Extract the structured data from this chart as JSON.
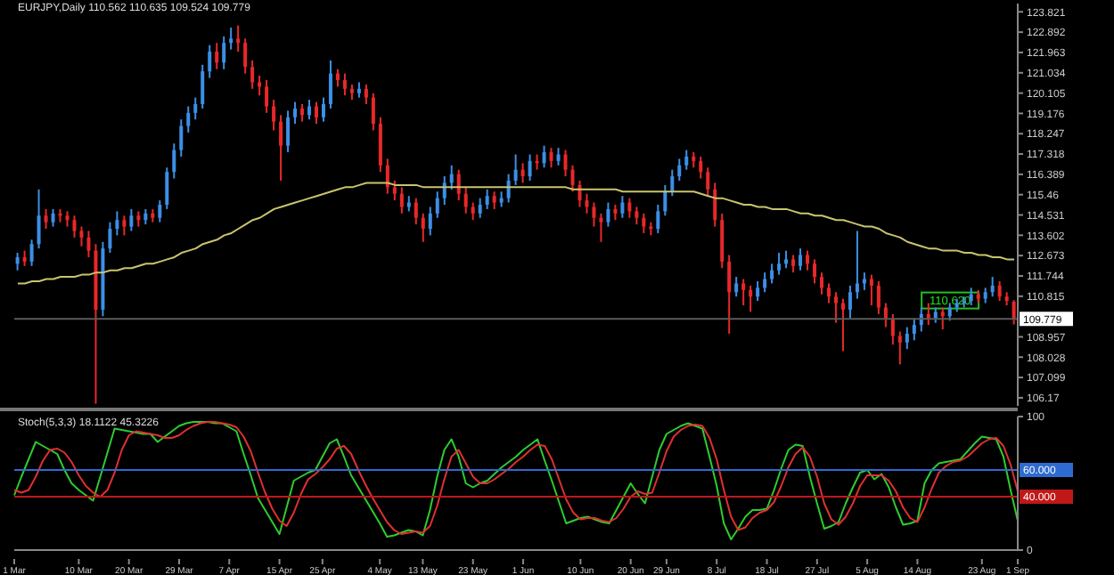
{
  "chart_data": [
    {
      "type": "candlestick",
      "title": "EURJPY,Daily 110.562 110.635 109.524 109.779",
      "categories": [
        null,
        null,
        null,
        null,
        null,
        null,
        null,
        null,
        null,
        null,
        null,
        null,
        null,
        null,
        null,
        null,
        null,
        null,
        null,
        null,
        null,
        null,
        null,
        null,
        null,
        null,
        null,
        null,
        null,
        null,
        null,
        null,
        null,
        null,
        null,
        null,
        null,
        null,
        null,
        null,
        null,
        null,
        null,
        null,
        null,
        null,
        null,
        null,
        null,
        null,
        null,
        null,
        null,
        null,
        null,
        null,
        null,
        null,
        null,
        null,
        null,
        null,
        null,
        null,
        null,
        null,
        null,
        null,
        null,
        null,
        null,
        null,
        null,
        null,
        null,
        null,
        null,
        null,
        null,
        null,
        null,
        null,
        null,
        null,
        null,
        null,
        null,
        null,
        null,
        null,
        null,
        null,
        null,
        null,
        null,
        null,
        null,
        null,
        null,
        null,
        null,
        null,
        null,
        null,
        null,
        null,
        null,
        null,
        null,
        null,
        null,
        null,
        null,
        null,
        null,
        null,
        null,
        null,
        null,
        null,
        null,
        null,
        null,
        null,
        null,
        null,
        null,
        null,
        null,
        null,
        null,
        null,
        null,
        null,
        null,
        null,
        null,
        null,
        null,
        null,
        null
      ],
      "ohlc": [
        [
          112.3,
          112.8,
          112.0,
          112.6
        ],
        [
          112.6,
          112.9,
          112.2,
          112.4
        ],
        [
          112.4,
          113.4,
          112.2,
          113.2
        ],
        [
          113.2,
          115.7,
          113.0,
          114.5
        ],
        [
          114.5,
          114.8,
          113.9,
          114.2
        ],
        [
          114.2,
          114.8,
          114.0,
          114.6
        ],
        [
          114.6,
          114.8,
          114.2,
          114.5
        ],
        [
          114.5,
          114.7,
          114.0,
          114.3
        ],
        [
          114.3,
          114.5,
          113.5,
          113.8
        ],
        [
          113.8,
          114.0,
          113.1,
          113.5
        ],
        [
          113.5,
          113.8,
          112.6,
          112.9
        ],
        [
          112.9,
          113.2,
          105.9,
          110.2
        ],
        [
          110.2,
          113.3,
          109.9,
          113.0
        ],
        [
          113.0,
          114.2,
          112.8,
          113.9
        ],
        [
          113.9,
          114.7,
          113.6,
          114.3
        ],
        [
          114.3,
          114.5,
          113.6,
          114.0
        ],
        [
          114.0,
          114.8,
          113.8,
          114.5
        ],
        [
          114.5,
          114.7,
          114.0,
          114.3
        ],
        [
          114.3,
          114.8,
          114.1,
          114.6
        ],
        [
          114.6,
          114.8,
          114.2,
          114.4
        ],
        [
          114.4,
          115.2,
          114.2,
          115.0
        ],
        [
          115.0,
          116.7,
          114.8,
          116.5
        ],
        [
          116.5,
          117.8,
          116.2,
          117.5
        ],
        [
          117.5,
          118.9,
          117.2,
          118.6
        ],
        [
          118.6,
          119.5,
          118.3,
          119.2
        ],
        [
          119.2,
          119.9,
          118.9,
          119.6
        ],
        [
          119.6,
          121.4,
          119.4,
          121.1
        ],
        [
          121.1,
          122.3,
          120.8,
          122.0
        ],
        [
          122.0,
          122.4,
          121.2,
          121.5
        ],
        [
          121.5,
          122.7,
          121.2,
          122.4
        ],
        [
          122.4,
          123.1,
          122.1,
          122.6
        ],
        [
          122.6,
          123.2,
          122.0,
          122.4
        ],
        [
          122.4,
          122.6,
          121.0,
          121.3
        ],
        [
          121.3,
          121.6,
          120.3,
          120.6
        ],
        [
          120.6,
          120.9,
          120.0,
          120.4
        ],
        [
          120.4,
          120.7,
          119.2,
          119.5
        ],
        [
          119.5,
          119.8,
          118.4,
          118.8
        ],
        [
          118.8,
          119.1,
          116.1,
          117.7
        ],
        [
          117.7,
          119.3,
          117.4,
          119.0
        ],
        [
          119.0,
          119.7,
          118.7,
          119.4
        ],
        [
          119.4,
          119.6,
          118.8,
          119.1
        ],
        [
          119.1,
          119.8,
          118.9,
          119.5
        ],
        [
          119.5,
          119.7,
          118.7,
          119.0
        ],
        [
          119.0,
          119.9,
          118.8,
          119.6
        ],
        [
          119.6,
          121.6,
          119.4,
          121.0
        ],
        [
          121.0,
          121.2,
          120.4,
          120.7
        ],
        [
          120.7,
          121.0,
          120.0,
          120.3
        ],
        [
          120.3,
          120.5,
          119.8,
          120.1
        ],
        [
          120.1,
          120.6,
          119.9,
          120.3
        ],
        [
          120.3,
          120.5,
          119.6,
          119.9
        ],
        [
          119.9,
          120.1,
          118.4,
          118.7
        ],
        [
          118.7,
          119.0,
          116.5,
          116.8
        ],
        [
          116.8,
          117.1,
          115.5,
          115.8
        ],
        [
          115.8,
          116.1,
          115.2,
          115.5
        ],
        [
          115.5,
          115.8,
          114.6,
          114.9
        ],
        [
          114.9,
          115.4,
          114.7,
          115.1
        ],
        [
          115.1,
          115.3,
          114.1,
          114.4
        ],
        [
          114.4,
          114.6,
          113.3,
          113.9
        ],
        [
          113.9,
          114.9,
          113.6,
          114.6
        ],
        [
          114.6,
          115.6,
          114.4,
          115.3
        ],
        [
          115.3,
          116.3,
          115.0,
          116.0
        ],
        [
          116.0,
          116.8,
          115.7,
          116.4
        ],
        [
          116.4,
          116.6,
          115.2,
          115.5
        ],
        [
          115.5,
          115.8,
          114.6,
          114.9
        ],
        [
          114.9,
          115.1,
          114.3,
          114.6
        ],
        [
          114.6,
          115.3,
          114.4,
          115.0
        ],
        [
          115.0,
          115.7,
          114.8,
          115.4
        ],
        [
          115.4,
          115.6,
          114.8,
          115.1
        ],
        [
          115.1,
          115.6,
          114.9,
          115.3
        ],
        [
          115.3,
          116.4,
          115.1,
          116.1
        ],
        [
          116.1,
          117.3,
          115.9,
          116.6
        ],
        [
          116.6,
          116.9,
          116.0,
          116.3
        ],
        [
          116.3,
          117.3,
          116.1,
          117.0
        ],
        [
          117.0,
          117.3,
          116.6,
          116.9
        ],
        [
          116.9,
          117.7,
          116.7,
          117.4
        ],
        [
          117.4,
          117.6,
          116.7,
          117.0
        ],
        [
          117.0,
          117.6,
          116.8,
          117.3
        ],
        [
          117.3,
          117.5,
          116.3,
          116.6
        ],
        [
          116.6,
          116.8,
          115.6,
          115.9
        ],
        [
          115.9,
          116.1,
          114.9,
          115.2
        ],
        [
          115.2,
          115.5,
          114.6,
          114.9
        ],
        [
          114.9,
          115.1,
          114.0,
          114.4
        ],
        [
          114.4,
          114.6,
          113.3,
          114.2
        ],
        [
          114.2,
          115.1,
          114.0,
          114.8
        ],
        [
          114.8,
          115.0,
          114.3,
          114.6
        ],
        [
          114.6,
          115.4,
          114.4,
          115.1
        ],
        [
          115.1,
          115.3,
          114.4,
          114.7
        ],
        [
          114.7,
          114.9,
          114.1,
          114.4
        ],
        [
          114.4,
          114.6,
          113.7,
          114.0
        ],
        [
          114.0,
          114.2,
          113.6,
          113.9
        ],
        [
          113.9,
          115.0,
          113.7,
          114.7
        ],
        [
          114.7,
          115.9,
          114.5,
          115.6
        ],
        [
          115.6,
          116.6,
          115.4,
          116.3
        ],
        [
          116.3,
          117.1,
          116.1,
          116.8
        ],
        [
          116.8,
          117.5,
          116.6,
          117.2
        ],
        [
          117.2,
          117.4,
          116.7,
          117.0
        ],
        [
          117.0,
          117.2,
          116.2,
          116.5
        ],
        [
          116.5,
          116.7,
          115.4,
          115.7
        ],
        [
          115.7,
          116.0,
          114.0,
          114.3
        ],
        [
          114.3,
          114.6,
          112.1,
          112.4
        ],
        [
          112.4,
          112.7,
          109.1,
          111.0
        ],
        [
          111.0,
          111.7,
          110.8,
          111.4
        ],
        [
          111.4,
          111.6,
          110.4,
          111.1
        ],
        [
          111.1,
          111.3,
          110.1,
          110.8
        ],
        [
          110.8,
          111.5,
          110.6,
          111.2
        ],
        [
          111.2,
          111.9,
          111.0,
          111.6
        ],
        [
          111.6,
          112.3,
          111.4,
          112.0
        ],
        [
          112.0,
          112.8,
          111.8,
          112.3
        ],
        [
          112.3,
          112.9,
          112.1,
          112.5
        ],
        [
          112.5,
          112.7,
          111.9,
          112.2
        ],
        [
          112.2,
          113.0,
          112.0,
          112.7
        ],
        [
          112.7,
          112.9,
          112.0,
          112.3
        ],
        [
          112.3,
          112.5,
          111.4,
          111.7
        ],
        [
          111.7,
          111.9,
          110.9,
          111.2
        ],
        [
          111.2,
          111.4,
          110.5,
          110.8
        ],
        [
          110.8,
          111.0,
          109.6,
          110.5
        ],
        [
          110.5,
          110.7,
          108.3,
          110.2
        ],
        [
          110.2,
          111.3,
          109.8,
          111.0
        ],
        [
          111.0,
          113.8,
          110.7,
          111.4
        ],
        [
          111.4,
          111.9,
          111.1,
          111.6
        ],
        [
          111.6,
          111.8,
          110.4,
          111.3
        ],
        [
          111.3,
          111.5,
          110.0,
          110.3
        ],
        [
          110.3,
          110.5,
          109.4,
          109.8
        ],
        [
          109.8,
          110.0,
          108.6,
          109.0
        ],
        [
          109.0,
          109.2,
          107.7,
          108.7
        ],
        [
          108.7,
          109.4,
          108.4,
          109.1
        ],
        [
          109.1,
          109.8,
          108.8,
          109.5
        ],
        [
          109.5,
          110.3,
          109.2,
          110.0
        ],
        [
          110.0,
          110.5,
          109.5,
          109.8
        ],
        [
          109.8,
          110.3,
          109.6,
          110.1
        ],
        [
          110.1,
          110.3,
          109.3,
          109.9
        ],
        [
          109.9,
          110.5,
          109.7,
          110.3
        ],
        [
          110.3,
          110.7,
          110.1,
          110.5
        ],
        [
          110.5,
          110.8,
          110.3,
          110.6
        ],
        [
          110.6,
          111.2,
          110.4,
          110.9
        ],
        [
          110.9,
          111.1,
          110.5,
          110.7
        ],
        [
          110.7,
          111.2,
          110.5,
          111.0
        ],
        [
          111.0,
          111.7,
          110.8,
          111.3
        ],
        [
          111.3,
          111.5,
          110.6,
          110.8
        ],
        [
          110.8,
          111.0,
          110.4,
          110.6
        ],
        [
          110.562,
          110.635,
          109.524,
          109.779
        ]
      ],
      "colors": [
        "#3c8fe6",
        "#e8282a",
        "#3c8fe6",
        "#3c8fe6",
        "#e8282a",
        "#3c8fe6",
        "#e8282a",
        "#e8282a",
        "#e8282a",
        "#e8282a",
        "#e8282a",
        "#e8282a",
        "#3c8fe6",
        "#3c8fe6",
        "#3c8fe6",
        "#e8282a",
        "#3c8fe6",
        "#e8282a",
        "#3c8fe6",
        "#e8282a",
        "#3c8fe6",
        "#3c8fe6",
        "#3c8fe6",
        "#3c8fe6",
        "#3c8fe6",
        "#3c8fe6",
        "#3c8fe6",
        "#3c8fe6",
        "#e8282a",
        "#3c8fe6",
        "#3c8fe6",
        "#e8282a",
        "#e8282a",
        "#e8282a",
        "#e8282a",
        "#e8282a",
        "#e8282a",
        "#e8282a",
        "#3c8fe6",
        "#3c8fe6",
        "#e8282a",
        "#3c8fe6",
        "#e8282a",
        "#3c8fe6",
        "#3c8fe6",
        "#e8282a",
        "#e8282a",
        "#e8282a",
        "#3c8fe6",
        "#e8282a",
        "#e8282a",
        "#e8282a",
        "#e8282a",
        "#e8282a",
        "#e8282a",
        "#3c8fe6",
        "#e8282a",
        "#e8282a",
        "#3c8fe6",
        "#3c8fe6",
        "#3c8fe6",
        "#3c8fe6",
        "#e8282a",
        "#e8282a",
        "#e8282a",
        "#3c8fe6",
        "#3c8fe6",
        "#e8282a",
        "#3c8fe6",
        "#3c8fe6",
        "#3c8fe6",
        "#e8282a",
        "#3c8fe6",
        "#e8282a",
        "#3c8fe6",
        "#e8282a",
        "#3c8fe6",
        "#e8282a",
        "#e8282a",
        "#e8282a",
        "#e8282a",
        "#e8282a",
        "#e8282a",
        "#3c8fe6",
        "#e8282a",
        "#3c8fe6",
        "#e8282a",
        "#e8282a",
        "#e8282a",
        "#e8282a",
        "#3c8fe6",
        "#3c8fe6",
        "#3c8fe6",
        "#3c8fe6",
        "#3c8fe6",
        "#e8282a",
        "#e8282a",
        "#e8282a",
        "#e8282a",
        "#e8282a",
        "#e8282a",
        "#3c8fe6",
        "#e8282a",
        "#e8282a",
        "#3c8fe6",
        "#3c8fe6",
        "#3c8fe6",
        "#3c8fe6",
        "#3c8fe6",
        "#e8282a",
        "#3c8fe6",
        "#e8282a",
        "#e8282a",
        "#e8282a",
        "#e8282a",
        "#e8282a",
        "#e8282a",
        "#3c8fe6",
        "#3c8fe6",
        "#3c8fe6",
        "#e8282a",
        "#e8282a",
        "#e8282a",
        "#e8282a",
        "#e8282a",
        "#3c8fe6",
        "#3c8fe6",
        "#3c8fe6",
        "#e8282a",
        "#3c8fe6",
        "#e8282a",
        "#3c8fe6",
        "#3c8fe6",
        "#3c8fe6",
        "#3c8fe6",
        "#e8282a",
        "#3c8fe6",
        "#3c8fe6",
        "#e8282a",
        "#e8282a",
        "#e8282a"
      ],
      "series": [
        {
          "type": "line",
          "color": "#c9c46e",
          "values": [
            111.4,
            111.4,
            111.5,
            111.5,
            111.6,
            111.6,
            111.7,
            111.7,
            111.7,
            111.8,
            111.8,
            111.9,
            111.9,
            112.0,
            112.0,
            112.1,
            112.1,
            112.2,
            112.3,
            112.3,
            112.4,
            112.5,
            112.6,
            112.8,
            112.9,
            113.0,
            113.2,
            113.3,
            113.4,
            113.6,
            113.7,
            113.9,
            114.1,
            114.3,
            114.4,
            114.6,
            114.8,
            114.9,
            115.0,
            115.1,
            115.2,
            115.3,
            115.4,
            115.5,
            115.6,
            115.7,
            115.8,
            115.8,
            115.9,
            116.0,
            116.0,
            116.0,
            116.0,
            115.9,
            115.9,
            115.9,
            115.9,
            115.8,
            115.8,
            115.8,
            115.8,
            115.8,
            115.8,
            115.8,
            115.8,
            115.8,
            115.8,
            115.8,
            115.8,
            115.8,
            115.8,
            115.8,
            115.8,
            115.8,
            115.8,
            115.8,
            115.8,
            115.8,
            115.7,
            115.7,
            115.7,
            115.7,
            115.7,
            115.7,
            115.7,
            115.6,
            115.6,
            115.6,
            115.6,
            115.6,
            115.6,
            115.6,
            115.6,
            115.6,
            115.6,
            115.6,
            115.5,
            115.4,
            115.3,
            115.3,
            115.2,
            115.1,
            115.0,
            115.0,
            114.9,
            114.9,
            114.8,
            114.8,
            114.8,
            114.7,
            114.6,
            114.6,
            114.5,
            114.5,
            114.4,
            114.3,
            114.3,
            114.2,
            114.1,
            114.0,
            114.0,
            113.9,
            113.7,
            113.6,
            113.5,
            113.3,
            113.2,
            113.1,
            113.0,
            113.0,
            112.9,
            112.9,
            112.9,
            112.8,
            112.8,
            112.7,
            112.7,
            112.6,
            112.6,
            112.5,
            112.5
          ]
        }
      ],
      "ylim": [
        105.8,
        124.2
      ],
      "yticks": [
        106.17,
        107.099,
        108.028,
        108.957,
        110.815,
        111.744,
        112.673,
        113.602,
        114.531,
        115.46,
        116.389,
        117.318,
        118.247,
        119.176,
        120.105,
        121.034,
        121.963,
        122.892,
        123.821
      ],
      "ref_lines": [
        {
          "axis": "y",
          "value": 109.779,
          "label": "109.779",
          "color": "#5a5a5a"
        }
      ],
      "annotations": [
        {
          "text": "110.620",
          "y": 110.62
        }
      ]
    },
    {
      "type": "line",
      "title": "Stoch(5,3,3) 18.1122 45.3226",
      "categories": [
        "1 Mar 2011",
        null,
        null,
        null,
        null,
        null,
        null,
        null,
        null,
        "10 Mar 2011",
        null,
        null,
        null,
        null,
        null,
        null,
        "20 Mar 2011",
        null,
        null,
        null,
        null,
        null,
        null,
        "29 Mar 2011",
        null,
        null,
        null,
        null,
        null,
        null,
        "7 Apr 2011",
        null,
        null,
        null,
        null,
        null,
        null,
        "15 Apr 2011",
        null,
        null,
        null,
        null,
        null,
        "25 Apr 2011",
        null,
        null,
        null,
        null,
        null,
        null,
        null,
        "4 May 2011",
        null,
        null,
        null,
        null,
        null,
        "13 May 2011",
        null,
        null,
        null,
        null,
        null,
        null,
        "23 May 2011",
        null,
        null,
        null,
        null,
        null,
        null,
        "1 Jun 2011",
        null,
        null,
        null,
        null,
        null,
        null,
        null,
        "10 Jun 2011",
        null,
        null,
        null,
        null,
        null,
        null,
        "20 Jun 2011",
        null,
        null,
        null,
        null,
        "29 Jun 2011",
        null,
        null,
        null,
        null,
        null,
        null,
        "8 Jul 2011",
        null,
        null,
        null,
        null,
        null,
        null,
        "18 Jul 2011",
        null,
        null,
        null,
        null,
        null,
        null,
        "27 Jul 2011",
        null,
        null,
        null,
        null,
        null,
        null,
        "5 Aug 2011",
        null,
        null,
        null,
        null,
        null,
        null,
        "14 Aug 2011",
        null,
        null,
        null,
        null,
        null,
        null,
        null,
        null,
        "23 Aug 2011",
        null,
        null,
        null,
        null,
        "1 Sep 2011"
      ],
      "series": [
        {
          "color": "#2ecc2e",
          "values": [
            41,
            55,
            68,
            81,
            78,
            75,
            72,
            60,
            50,
            45,
            41,
            37,
            55,
            73,
            91,
            90,
            89,
            88,
            87,
            87,
            81,
            85,
            89,
            93,
            95,
            96,
            96,
            96,
            95,
            95,
            92,
            89,
            72,
            56,
            39,
            30,
            21,
            12,
            32,
            52,
            55,
            58,
            60,
            70,
            80,
            83,
            70,
            56,
            47,
            38,
            29,
            20,
            10,
            11,
            13,
            15,
            14,
            11,
            30,
            55,
            75,
            83,
            70,
            50,
            47,
            50,
            52,
            57,
            62,
            66,
            70,
            75,
            79,
            83,
            67,
            52,
            36,
            20,
            22,
            24,
            25,
            23,
            21,
            20,
            30,
            40,
            50,
            42,
            35,
            55,
            75,
            87,
            90,
            93,
            95,
            93,
            91,
            70,
            48,
            20,
            8,
            16,
            25,
            30,
            30,
            31,
            45,
            61,
            75,
            79,
            78,
            55,
            35,
            16,
            18,
            21,
            35,
            47,
            58,
            60,
            53,
            57,
            47,
            32,
            19,
            20,
            22,
            50,
            60,
            65,
            66,
            67,
            68,
            74,
            80,
            85,
            84,
            83,
            70,
            45,
            22
          ]
        },
        {
          "color": "#e03030",
          "values": [
            45,
            43,
            45,
            55,
            67,
            75,
            76,
            73,
            66,
            56,
            48,
            43,
            40,
            45,
            58,
            75,
            86,
            89,
            88,
            87,
            86,
            84,
            84,
            86,
            90,
            93,
            95,
            96,
            96,
            95,
            94,
            92,
            85,
            74,
            58,
            43,
            31,
            22,
            18,
            28,
            42,
            53,
            57,
            62,
            68,
            76,
            78,
            72,
            60,
            49,
            39,
            30,
            21,
            15,
            12,
            13,
            14,
            13,
            18,
            33,
            53,
            70,
            75,
            65,
            55,
            50,
            50,
            53,
            57,
            61,
            66,
            70,
            75,
            79,
            78,
            68,
            53,
            38,
            28,
            23,
            24,
            24,
            22,
            21,
            24,
            31,
            40,
            44,
            42,
            43,
            58,
            74,
            85,
            90,
            93,
            94,
            93,
            84,
            68,
            45,
            25,
            15,
            17,
            24,
            28,
            30,
            36,
            48,
            62,
            72,
            77,
            70,
            55,
            35,
            23,
            19,
            25,
            35,
            48,
            56,
            56,
            56,
            52,
            44,
            32,
            24,
            21,
            32,
            46,
            58,
            63,
            66,
            67,
            70,
            75,
            80,
            83,
            84,
            78,
            64,
            44
          ]
        }
      ],
      "ylim": [
        0,
        100
      ],
      "yticks": [
        0,
        100
      ],
      "ref_lines": [
        {
          "axis": "y",
          "value": 60,
          "label": "60.000",
          "color": "#2e6bd0"
        },
        {
          "axis": "y",
          "value": 40,
          "label": "40.000",
          "color": "#c01818"
        }
      ]
    }
  ]
}
